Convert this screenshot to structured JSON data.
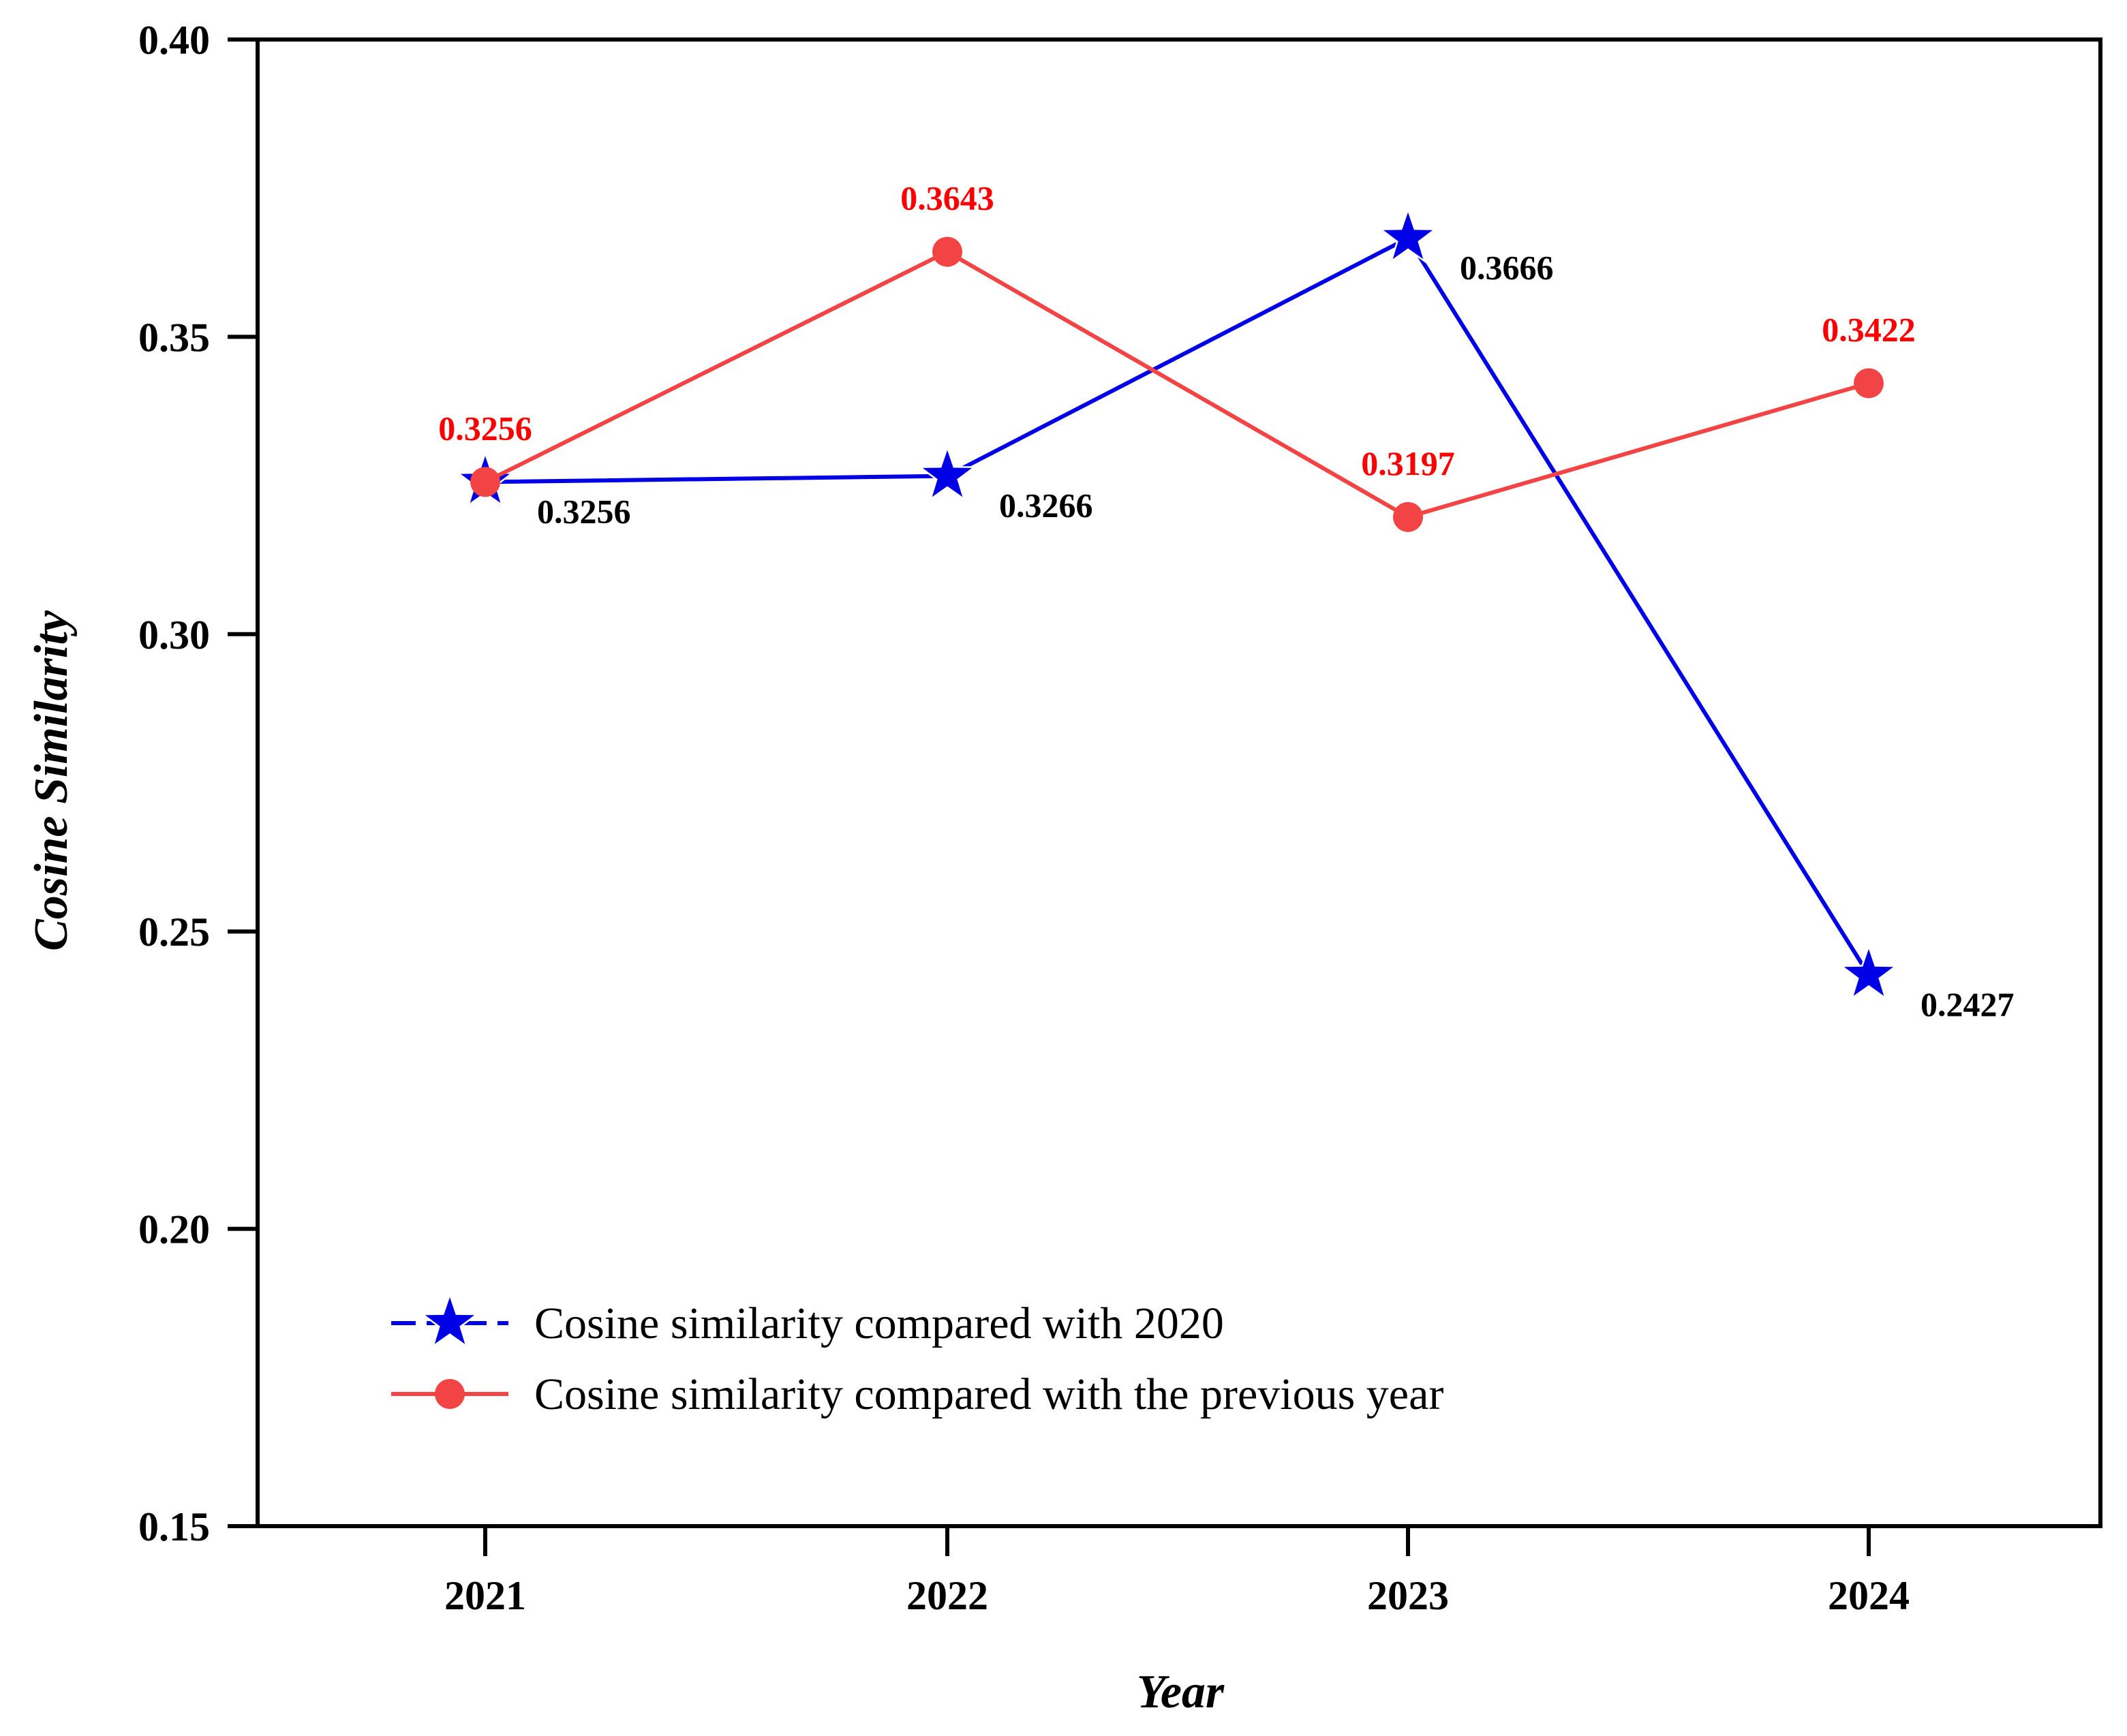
{
  "chart_data": {
    "type": "line",
    "title": "",
    "xlabel": "Year",
    "ylabel": "Cosine Similarity",
    "categories": [
      "2021",
      "2022",
      "2023",
      "2024"
    ],
    "ylim": [
      0.15,
      0.4
    ],
    "yticks": [
      "0.15",
      "0.20",
      "0.25",
      "0.30",
      "0.35",
      "0.40"
    ],
    "grid": false,
    "legend_position": "bottom-left",
    "series": [
      {
        "name": "Cosine similarity compared with 2020",
        "color": "#0000e6",
        "marker": "star",
        "values": [
          0.3256,
          0.3266,
          0.3666,
          0.2427
        ],
        "labels": [
          "0.3256",
          "0.3266",
          "0.3666",
          "0.2427"
        ],
        "label_color": "#000000"
      },
      {
        "name": "Cosine similarity compared with the previous year",
        "color": "#f24444",
        "marker": "circle",
        "values": [
          0.3256,
          0.3643,
          0.3197,
          0.3422
        ],
        "labels": [
          "0.3256",
          "0.3643",
          "0.3197",
          "0.3422"
        ],
        "label_color": "#ff0000"
      }
    ]
  }
}
